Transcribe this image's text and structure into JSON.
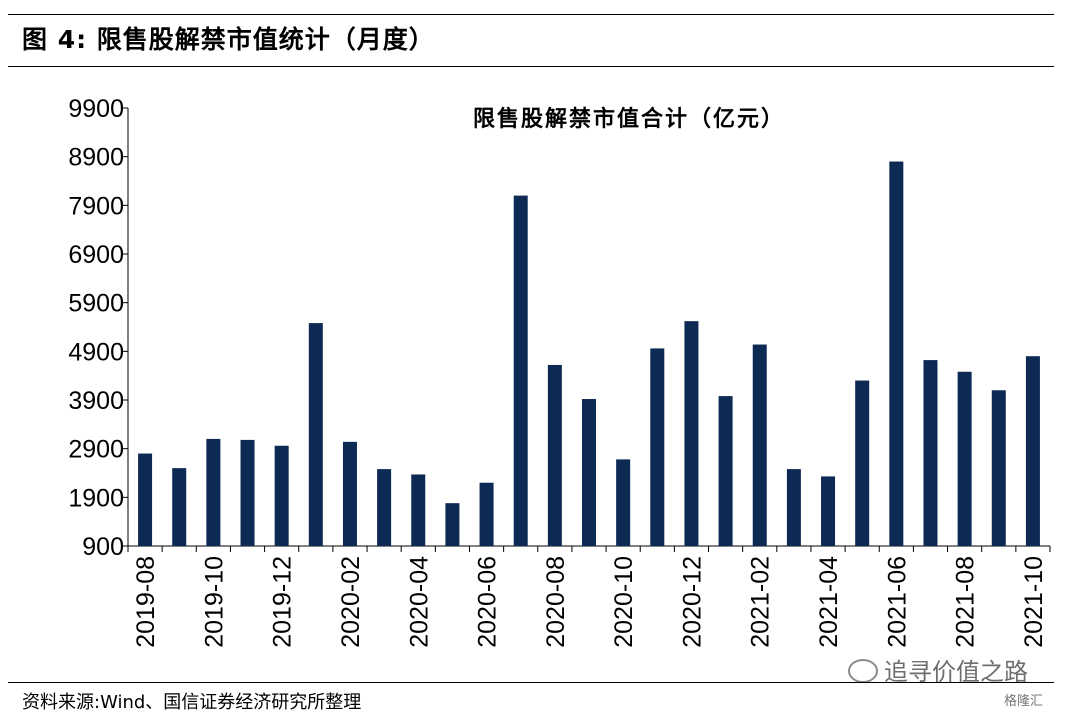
{
  "figure": {
    "title": "图 4:  限售股解禁市值统计（月度）",
    "source": "资料来源:Wind、国信证券经济研究所整理"
  },
  "watermark": {
    "text": "追寻价值之路",
    "icon": "wechat-icon",
    "brand": "格隆汇"
  },
  "chart_data": {
    "type": "bar",
    "title": "限售股解禁市值合计（亿元）",
    "xlabel": "",
    "ylabel": "",
    "ylim": [
      900,
      9900
    ],
    "yticks": [
      900,
      1900,
      2900,
      3900,
      4900,
      5900,
      6900,
      7900,
      8900,
      9900
    ],
    "grid": false,
    "bar_color": "#0d2a54",
    "categories": [
      "2019-08",
      "2019-09",
      "2019-10",
      "2019-11",
      "2019-12",
      "2020-01",
      "2020-02",
      "2020-03",
      "2020-04",
      "2020-05",
      "2020-06",
      "2020-07",
      "2020-08",
      "2020-09",
      "2020-10",
      "2020-11",
      "2020-12",
      "2021-01",
      "2021-02",
      "2021-03",
      "2021-04",
      "2021-05",
      "2021-06",
      "2021-07",
      "2021-08",
      "2021-09",
      "2021-10"
    ],
    "xtick_labels": [
      "2019-08",
      "",
      "2019-10",
      "",
      "2019-12",
      "",
      "2020-02",
      "",
      "2020-04",
      "",
      "2020-06",
      "",
      "2020-08",
      "",
      "2020-10",
      "",
      "2020-12",
      "",
      "2021-02",
      "",
      "2021-04",
      "",
      "2021-06",
      "",
      "2021-08",
      "",
      "2021-10"
    ],
    "values": [
      2800,
      2500,
      3100,
      3080,
      2960,
      5480,
      3040,
      2480,
      2370,
      1780,
      2200,
      8100,
      4620,
      3920,
      2680,
      4960,
      5520,
      3980,
      5040,
      2480,
      2330,
      4300,
      8800,
      4720,
      4480,
      4100,
      4800
    ]
  }
}
